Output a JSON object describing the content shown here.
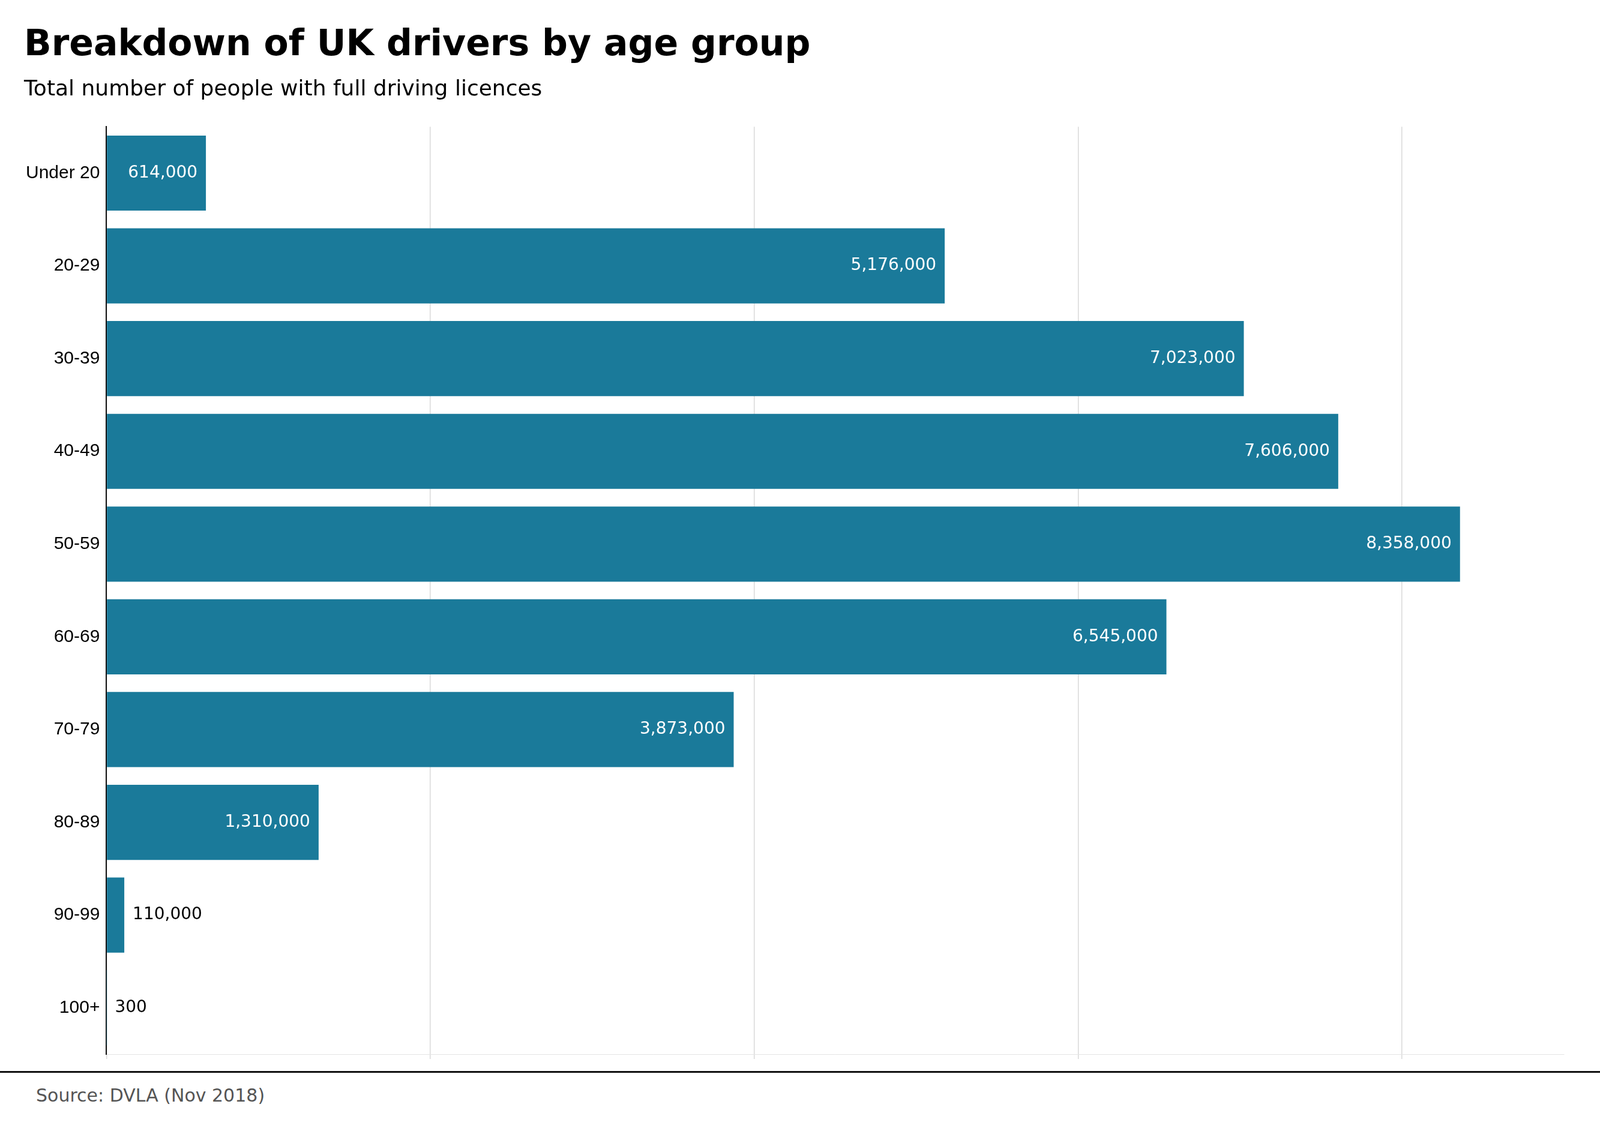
{
  "chart_data": {
    "type": "bar",
    "orientation": "horizontal",
    "title": "Breakdown of UK drivers by age group",
    "subtitle": "Total number of people with full driving licences",
    "source": "Source: DVLA (Nov 2018)",
    "categories": [
      "Under 20",
      "20-29",
      "30-39",
      "40-49",
      "50-59",
      "60-69",
      "70-79",
      "80-89",
      "90-99",
      "100+"
    ],
    "values": [
      614000,
      5176000,
      7023000,
      7606000,
      8358000,
      6545000,
      3873000,
      1310000,
      110000,
      300
    ],
    "value_labels": [
      "614,000",
      "5,176,000",
      "7,023,000",
      "7,606,000",
      "8,358,000",
      "6,545,000",
      "3,873,000",
      "1,310,000",
      "110,000",
      "300"
    ],
    "data_labels": true,
    "color": "#1a7a9a",
    "xlim": [
      0,
      9000000
    ],
    "xticks": [
      0,
      2000000,
      4000000,
      6000000,
      8000000
    ],
    "grid": true,
    "tick_labels": "y"
  }
}
